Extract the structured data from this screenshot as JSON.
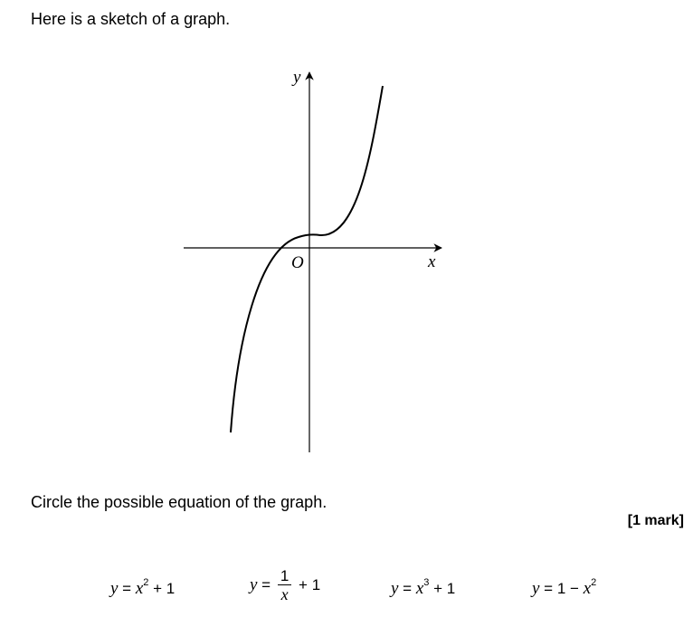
{
  "question": {
    "intro": "Here is a sketch of a graph.",
    "prompt": "Circle the possible equation of the graph.",
    "marks": "[1 mark]"
  },
  "graph": {
    "y_label": "y",
    "x_label": "x",
    "origin_label": "O"
  },
  "options": [
    {
      "var": "y",
      "eq": "=",
      "base": "x",
      "power": "2",
      "rest": "+ 1"
    },
    {
      "var": "y",
      "eq": "=",
      "numerator": "1",
      "denominator": "x",
      "rest": "+ 1"
    },
    {
      "var": "y",
      "eq": "=",
      "base": "x",
      "power": "3",
      "rest": "+ 1"
    },
    {
      "var": "y",
      "eq": "=",
      "lead": "1 −",
      "base": "x",
      "power": "2"
    }
  ],
  "chart_data": {
    "type": "line",
    "title": "",
    "xlabel": "x",
    "ylabel": "y",
    "series": [
      {
        "name": "curve",
        "function": "cubic-shaped, positive y-intercept"
      }
    ]
  }
}
